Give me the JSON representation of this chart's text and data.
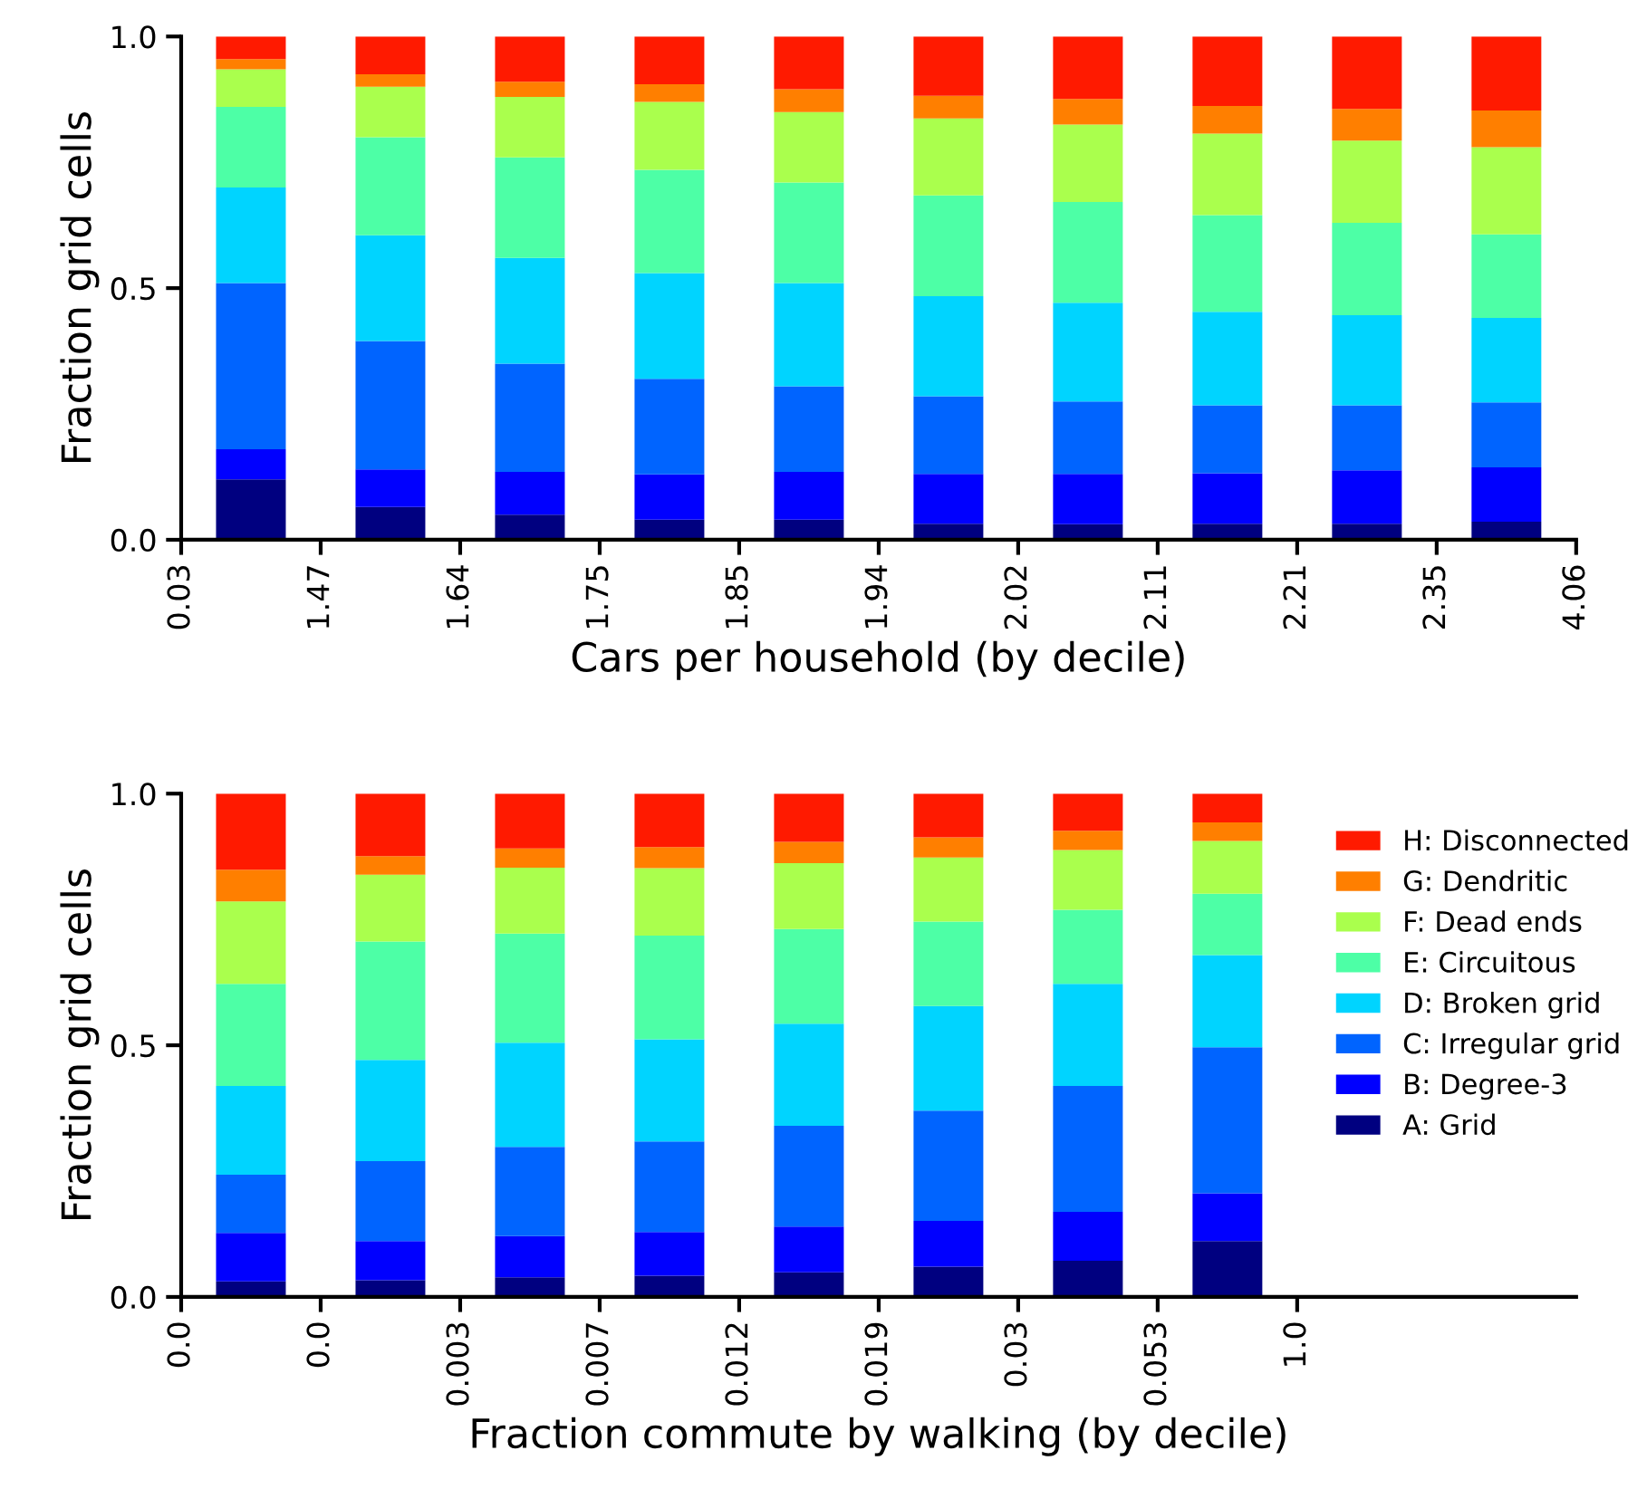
{
  "chart_data": [
    {
      "type": "bar",
      "stacked": true,
      "xlabel": "Cars per household (by decile)",
      "ylabel": "Fraction grid cells",
      "categories": [
        "0.03",
        null,
        "1.47",
        null,
        "1.64",
        null,
        "1.75",
        null,
        "1.85",
        null,
        "1.94",
        null,
        "2.02",
        null,
        "2.11",
        null,
        "2.21",
        null,
        "2.35",
        null,
        "4.06"
      ],
      "ylim": [
        0,
        1
      ],
      "yticks": [
        {
          "value": 0,
          "label": "0.0"
        },
        {
          "value": 0.5,
          "label": "0.5"
        },
        {
          "value": 1,
          "label": "1.0"
        }
      ],
      "grid": false,
      "legend": false,
      "series": [
        {
          "color": "#000080",
          "values": [
            null,
            0.12,
            null,
            0.065,
            null,
            0.05,
            null,
            0.04,
            null,
            0.04,
            null,
            0.032,
            null,
            0.031,
            null,
            0.032,
            null,
            0.032,
            null,
            0.036,
            null
          ]
        },
        {
          "color": "#0000ff",
          "values": [
            null,
            0.06,
            null,
            0.075,
            null,
            0.085,
            null,
            0.09,
            null,
            0.095,
            null,
            0.099,
            null,
            0.1,
            null,
            0.1,
            null,
            0.106,
            null,
            0.108,
            null
          ]
        },
        {
          "color": "#0064ff",
          "values": [
            null,
            0.33,
            null,
            0.255,
            null,
            0.215,
            null,
            0.19,
            null,
            0.17,
            null,
            0.154,
            null,
            0.144,
            null,
            0.135,
            null,
            0.129,
            null,
            0.129,
            null
          ]
        },
        {
          "color": "#00d4ff",
          "values": [
            null,
            0.19,
            null,
            0.21,
            null,
            0.21,
            null,
            0.21,
            null,
            0.205,
            null,
            0.199,
            null,
            0.196,
            null,
            0.186,
            null,
            0.179,
            null,
            0.168,
            null
          ]
        },
        {
          "color": "#4dffa6",
          "values": [
            null,
            0.16,
            null,
            0.195,
            null,
            0.2,
            null,
            0.205,
            null,
            0.2,
            null,
            0.2,
            null,
            0.2,
            null,
            0.192,
            null,
            0.184,
            null,
            0.166,
            null
          ]
        },
        {
          "color": "#aaff4d",
          "values": [
            null,
            0.075,
            null,
            0.1,
            null,
            0.12,
            null,
            0.135,
            null,
            0.14,
            null,
            0.153,
            null,
            0.154,
            null,
            0.162,
            null,
            0.163,
            null,
            0.173,
            null
          ]
        },
        {
          "color": "#ff7f00",
          "values": [
            null,
            0.02,
            null,
            0.025,
            null,
            0.03,
            null,
            0.035,
            null,
            0.045,
            null,
            0.045,
            null,
            0.051,
            null,
            0.055,
            null,
            0.063,
            null,
            0.073,
            null
          ]
        },
        {
          "color": "#ff1a00",
          "values": [
            null,
            0.045,
            null,
            0.075,
            null,
            0.09,
            null,
            0.095,
            null,
            0.105,
            null,
            0.118,
            null,
            0.124,
            null,
            0.138,
            null,
            0.144,
            null,
            0.147,
            null
          ]
        }
      ]
    },
    {
      "type": "bar",
      "stacked": true,
      "xlabel": "Fraction commute by walking (by decile)",
      "ylabel": "Fraction grid cells",
      "categories": [
        "0.0",
        null,
        "0.0",
        null,
        "0.003",
        null,
        "0.007",
        null,
        "0.012",
        null,
        "0.019",
        null,
        "0.03",
        null,
        "0.053",
        null,
        "1.0",
        null,
        null,
        null,
        null
      ],
      "ylim": [
        0,
        1
      ],
      "yticks": [
        {
          "value": 0,
          "label": "0.0"
        },
        {
          "value": 0.5,
          "label": "0.5"
        },
        {
          "value": 1,
          "label": "1.0"
        }
      ],
      "grid": false,
      "legend": "right",
      "series": [
        {
          "name": "A: Grid",
          "color": "#000080",
          "values": [
            null,
            0.031,
            null,
            0.033,
            null,
            0.039,
            null,
            0.042,
            null,
            0.049,
            null,
            0.06,
            null,
            0.072,
            null,
            0.111,
            null,
            null,
            null,
            null,
            null
          ]
        },
        {
          "name": "B: Degree-3",
          "color": "#0000ff",
          "values": [
            null,
            0.096,
            null,
            0.078,
            null,
            0.082,
            null,
            0.087,
            null,
            0.091,
            null,
            0.091,
            null,
            0.097,
            null,
            0.095,
            null,
            null,
            null,
            null,
            null
          ]
        },
        {
          "name": "C: Irregular grid",
          "color": "#0064ff",
          "values": [
            null,
            0.116,
            null,
            0.159,
            null,
            0.177,
            null,
            0.18,
            null,
            0.2,
            null,
            0.219,
            null,
            0.25,
            null,
            0.29,
            null,
            null,
            null,
            null,
            null
          ]
        },
        {
          "name": "D: Broken grid",
          "color": "#00d4ff",
          "values": [
            null,
            0.176,
            null,
            0.201,
            null,
            0.207,
            null,
            0.203,
            null,
            0.203,
            null,
            0.208,
            null,
            0.203,
            null,
            0.183,
            null,
            null,
            null,
            null,
            null
          ]
        },
        {
          "name": "E: Circuitous",
          "color": "#4dffa6",
          "values": [
            null,
            0.203,
            null,
            0.235,
            null,
            0.217,
            null,
            0.206,
            null,
            0.188,
            null,
            0.168,
            null,
            0.147,
            null,
            0.122,
            null,
            null,
            null,
            null,
            null
          ]
        },
        {
          "name": "F: Dead ends",
          "color": "#aaff4d",
          "values": [
            null,
            0.164,
            null,
            0.133,
            null,
            0.131,
            null,
            0.134,
            null,
            0.131,
            null,
            0.127,
            null,
            0.119,
            null,
            0.105,
            null,
            null,
            null,
            null,
            null
          ]
        },
        {
          "name": "G: Dendritic",
          "color": "#ff7f00",
          "values": [
            null,
            0.063,
            null,
            0.037,
            null,
            0.038,
            null,
            0.042,
            null,
            0.042,
            null,
            0.04,
            null,
            0.038,
            null,
            0.037,
            null,
            null,
            null,
            null,
            null
          ]
        },
        {
          "name": "H: Disconnected",
          "color": "#ff1a00",
          "values": [
            null,
            0.151,
            null,
            0.124,
            null,
            0.109,
            null,
            0.106,
            null,
            0.096,
            null,
            0.087,
            null,
            0.074,
            null,
            0.057,
            null,
            null,
            null,
            null,
            null
          ]
        }
      ]
    }
  ]
}
